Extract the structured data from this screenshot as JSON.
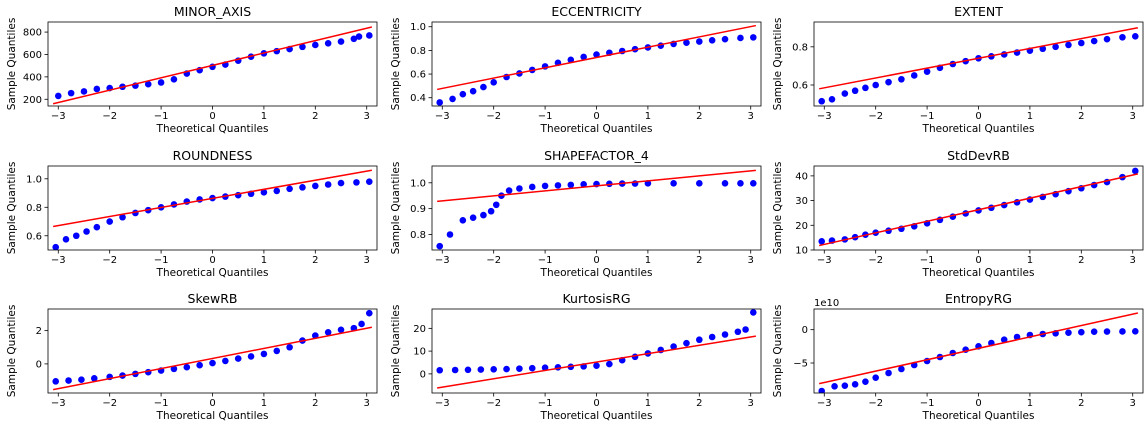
{
  "figure": {
    "xlabel": "Theoretical Quantiles",
    "ylabel": "Sample Quantiles",
    "point_color": "#0000ff",
    "line_color": "#ff0000"
  },
  "chart_data": [
    {
      "type": "scatter",
      "title": "MINOR_AXIS",
      "xlabel": "Theoretical Quantiles",
      "ylabel": "Sample Quantiles",
      "xlim": [
        -3.2,
        3.2
      ],
      "ylim": [
        140,
        890
      ],
      "xticks": [
        -3,
        -2,
        -1,
        0,
        1,
        2,
        3
      ],
      "yticks": [
        200,
        400,
        600,
        800
      ],
      "ytick_labels": [
        "200",
        "400",
        "600",
        "800"
      ],
      "offset_label": "",
      "points": [
        [
          -3.0,
          230
        ],
        [
          -2.75,
          255
        ],
        [
          -2.5,
          270
        ],
        [
          -2.25,
          292
        ],
        [
          -2.0,
          300
        ],
        [
          -1.75,
          312
        ],
        [
          -1.5,
          322
        ],
        [
          -1.25,
          335
        ],
        [
          -1.0,
          350
        ],
        [
          -0.75,
          378
        ],
        [
          -0.5,
          430
        ],
        [
          -0.25,
          460
        ],
        [
          0.0,
          490
        ],
        [
          0.25,
          510
        ],
        [
          0.5,
          545
        ],
        [
          0.75,
          580
        ],
        [
          1.0,
          610
        ],
        [
          1.25,
          630
        ],
        [
          1.5,
          648
        ],
        [
          1.75,
          668
        ],
        [
          2.0,
          685
        ],
        [
          2.25,
          700
        ],
        [
          2.5,
          715
        ],
        [
          2.75,
          740
        ],
        [
          2.85,
          760
        ],
        [
          3.05,
          770
        ]
      ],
      "fit_line": [
        [
          -3.1,
          160
        ],
        [
          3.1,
          845
        ]
      ]
    },
    {
      "type": "scatter",
      "title": "ECCENTRICITY",
      "xlabel": "Theoretical Quantiles",
      "ylabel": "Sample Quantiles",
      "xlim": [
        -3.2,
        3.2
      ],
      "ylim": [
        0.33,
        1.04
      ],
      "xticks": [
        -3,
        -2,
        -1,
        0,
        1,
        2,
        3
      ],
      "yticks": [
        0.4,
        0.6,
        0.8,
        1.0
      ],
      "ytick_labels": [
        "0.4",
        "0.6",
        "0.8",
        "1.0"
      ],
      "offset_label": "",
      "points": [
        [
          -3.05,
          0.36
        ],
        [
          -2.8,
          0.39
        ],
        [
          -2.6,
          0.43
        ],
        [
          -2.4,
          0.455
        ],
        [
          -2.2,
          0.49
        ],
        [
          -2.0,
          0.53
        ],
        [
          -1.75,
          0.575
        ],
        [
          -1.5,
          0.605
        ],
        [
          -1.25,
          0.635
        ],
        [
          -1.0,
          0.665
        ],
        [
          -0.75,
          0.695
        ],
        [
          -0.5,
          0.72
        ],
        [
          -0.25,
          0.745
        ],
        [
          0.0,
          0.765
        ],
        [
          0.25,
          0.78
        ],
        [
          0.5,
          0.795
        ],
        [
          0.75,
          0.81
        ],
        [
          1.0,
          0.825
        ],
        [
          1.25,
          0.84
        ],
        [
          1.5,
          0.855
        ],
        [
          1.75,
          0.865
        ],
        [
          2.0,
          0.875
        ],
        [
          2.25,
          0.885
        ],
        [
          2.5,
          0.895
        ],
        [
          2.8,
          0.905
        ],
        [
          3.05,
          0.91
        ]
      ],
      "fit_line": [
        [
          -3.1,
          0.47
        ],
        [
          3.1,
          1.01
        ]
      ]
    },
    {
      "type": "scatter",
      "title": "EXTENT",
      "xlabel": "Theoretical Quantiles",
      "ylabel": "Sample Quantiles",
      "xlim": [
        -3.2,
        3.2
      ],
      "ylim": [
        0.49,
        0.93
      ],
      "xticks": [
        -3,
        -2,
        -1,
        0,
        1,
        2,
        3
      ],
      "yticks": [
        0.6,
        0.8
      ],
      "ytick_labels": [
        "0.6",
        "0.8"
      ],
      "offset_label": "",
      "points": [
        [
          -3.05,
          0.515
        ],
        [
          -2.85,
          0.525
        ],
        [
          -2.6,
          0.555
        ],
        [
          -2.4,
          0.57
        ],
        [
          -2.2,
          0.585
        ],
        [
          -2.0,
          0.6
        ],
        [
          -1.75,
          0.615
        ],
        [
          -1.5,
          0.63
        ],
        [
          -1.25,
          0.65
        ],
        [
          -1.0,
          0.67
        ],
        [
          -0.75,
          0.69
        ],
        [
          -0.5,
          0.71
        ],
        [
          -0.25,
          0.725
        ],
        [
          0.0,
          0.74
        ],
        [
          0.25,
          0.75
        ],
        [
          0.5,
          0.76
        ],
        [
          0.75,
          0.77
        ],
        [
          1.0,
          0.78
        ],
        [
          1.25,
          0.79
        ],
        [
          1.5,
          0.8
        ],
        [
          1.75,
          0.81
        ],
        [
          2.0,
          0.82
        ],
        [
          2.25,
          0.83
        ],
        [
          2.5,
          0.84
        ],
        [
          2.8,
          0.85
        ],
        [
          3.05,
          0.855
        ]
      ],
      "fit_line": [
        [
          -3.1,
          0.58
        ],
        [
          3.1,
          0.9
        ]
      ]
    },
    {
      "type": "scatter",
      "title": "ROUNDNESS",
      "xlabel": "Theoretical Quantiles",
      "ylabel": "Sample Quantiles",
      "xlim": [
        -3.2,
        3.2
      ],
      "ylim": [
        0.5,
        1.09
      ],
      "xticks": [
        -3,
        -2,
        -1,
        0,
        1,
        2,
        3
      ],
      "yticks": [
        0.6,
        0.8,
        1.0
      ],
      "ytick_labels": [
        "0.6",
        "0.8",
        "1.0"
      ],
      "offset_label": "",
      "points": [
        [
          -3.05,
          0.52
        ],
        [
          -2.85,
          0.575
        ],
        [
          -2.65,
          0.6
        ],
        [
          -2.45,
          0.63
        ],
        [
          -2.25,
          0.66
        ],
        [
          -2.0,
          0.7
        ],
        [
          -1.75,
          0.73
        ],
        [
          -1.5,
          0.76
        ],
        [
          -1.25,
          0.78
        ],
        [
          -1.0,
          0.8
        ],
        [
          -0.75,
          0.82
        ],
        [
          -0.5,
          0.84
        ],
        [
          -0.25,
          0.855
        ],
        [
          0.0,
          0.865
        ],
        [
          0.25,
          0.875
        ],
        [
          0.5,
          0.885
        ],
        [
          0.75,
          0.895
        ],
        [
          1.0,
          0.905
        ],
        [
          1.25,
          0.915
        ],
        [
          1.5,
          0.93
        ],
        [
          1.75,
          0.94
        ],
        [
          2.0,
          0.95
        ],
        [
          2.25,
          0.96
        ],
        [
          2.5,
          0.97
        ],
        [
          2.8,
          0.975
        ],
        [
          3.05,
          0.98
        ]
      ],
      "fit_line": [
        [
          -3.1,
          0.665
        ],
        [
          3.1,
          1.06
        ]
      ]
    },
    {
      "type": "scatter",
      "title": "SHAPEFACTOR_4",
      "xlabel": "Theoretical Quantiles",
      "ylabel": "Sample Quantiles",
      "xlim": [
        -3.2,
        3.2
      ],
      "ylim": [
        0.74,
        1.065
      ],
      "xticks": [
        -3,
        -2,
        -1,
        0,
        1,
        2,
        3
      ],
      "yticks": [
        0.8,
        0.9,
        1.0
      ],
      "ytick_labels": [
        "0.8",
        "0.9",
        "1.0"
      ],
      "offset_label": "",
      "points": [
        [
          -3.05,
          0.755
        ],
        [
          -2.85,
          0.8
        ],
        [
          -2.6,
          0.855
        ],
        [
          -2.4,
          0.865
        ],
        [
          -2.2,
          0.875
        ],
        [
          -2.05,
          0.89
        ],
        [
          -1.95,
          0.915
        ],
        [
          -1.85,
          0.95
        ],
        [
          -1.7,
          0.97
        ],
        [
          -1.5,
          0.978
        ],
        [
          -1.25,
          0.984
        ],
        [
          -1.0,
          0.988
        ],
        [
          -0.75,
          0.99
        ],
        [
          -0.5,
          0.992
        ],
        [
          -0.25,
          0.994
        ],
        [
          0.0,
          0.995
        ],
        [
          0.25,
          0.996
        ],
        [
          0.5,
          0.997
        ],
        [
          0.75,
          0.997
        ],
        [
          1.0,
          0.998
        ],
        [
          1.5,
          0.998
        ],
        [
          2.0,
          0.998
        ],
        [
          2.5,
          0.998
        ],
        [
          2.8,
          0.998
        ],
        [
          3.05,
          0.998
        ]
      ],
      "fit_line": [
        [
          -3.1,
          0.928
        ],
        [
          3.1,
          1.048
        ]
      ]
    },
    {
      "type": "scatter",
      "title": "StdDevRB",
      "xlabel": "Theoretical Quantiles",
      "ylabel": "Sample Quantiles",
      "xlim": [
        -3.2,
        3.2
      ],
      "ylim": [
        10,
        44
      ],
      "xticks": [
        -3,
        -2,
        -1,
        0,
        1,
        2,
        3
      ],
      "yticks": [
        10,
        20,
        30,
        40
      ],
      "ytick_labels": [
        "10",
        "20",
        "30",
        "40"
      ],
      "offset_label": "",
      "points": [
        [
          -3.05,
          13.5
        ],
        [
          -2.85,
          13.8
        ],
        [
          -2.6,
          14.3
        ],
        [
          -2.4,
          15.2
        ],
        [
          -2.2,
          16.2
        ],
        [
          -2.0,
          17.0
        ],
        [
          -1.75,
          17.8
        ],
        [
          -1.5,
          18.6
        ],
        [
          -1.25,
          19.6
        ],
        [
          -1.0,
          20.8
        ],
        [
          -0.75,
          22.2
        ],
        [
          -0.5,
          23.5
        ],
        [
          -0.25,
          24.8
        ],
        [
          0.0,
          26.0
        ],
        [
          0.25,
          27.1
        ],
        [
          0.5,
          28.2
        ],
        [
          0.75,
          29.3
        ],
        [
          1.0,
          30.4
        ],
        [
          1.25,
          31.5
        ],
        [
          1.5,
          32.6
        ],
        [
          1.75,
          33.8
        ],
        [
          2.0,
          35.0
        ],
        [
          2.25,
          36.3
        ],
        [
          2.5,
          37.5
        ],
        [
          2.8,
          39.5
        ],
        [
          3.05,
          42.0
        ]
      ],
      "fit_line": [
        [
          -3.1,
          11.8
        ],
        [
          3.1,
          40.8
        ]
      ]
    },
    {
      "type": "scatter",
      "title": "SkewRB",
      "xlabel": "Theoretical Quantiles",
      "ylabel": "Sample Quantiles",
      "xlim": [
        -3.2,
        3.2
      ],
      "ylim": [
        -1.75,
        3.3
      ],
      "xticks": [
        -3,
        -2,
        -1,
        0,
        1,
        2,
        3
      ],
      "yticks": [
        0,
        2
      ],
      "ytick_labels": [
        "0",
        "2"
      ],
      "offset_label": "",
      "points": [
        [
          -3.05,
          -1.05
        ],
        [
          -2.8,
          -1.0
        ],
        [
          -2.55,
          -0.95
        ],
        [
          -2.3,
          -0.87
        ],
        [
          -2.0,
          -0.78
        ],
        [
          -1.75,
          -0.7
        ],
        [
          -1.5,
          -0.6
        ],
        [
          -1.25,
          -0.5
        ],
        [
          -1.0,
          -0.4
        ],
        [
          -0.75,
          -0.3
        ],
        [
          -0.5,
          -0.2
        ],
        [
          -0.25,
          -0.08
        ],
        [
          0.0,
          0.05
        ],
        [
          0.25,
          0.18
        ],
        [
          0.5,
          0.32
        ],
        [
          0.75,
          0.45
        ],
        [
          1.0,
          0.6
        ],
        [
          1.25,
          0.78
        ],
        [
          1.5,
          1.0
        ],
        [
          1.75,
          1.4
        ],
        [
          2.0,
          1.7
        ],
        [
          2.25,
          1.9
        ],
        [
          2.5,
          2.05
        ],
        [
          2.75,
          2.15
        ],
        [
          2.9,
          2.4
        ],
        [
          3.05,
          3.05
        ]
      ],
      "fit_line": [
        [
          -3.1,
          -1.55
        ],
        [
          3.1,
          2.2
        ]
      ]
    },
    {
      "type": "scatter",
      "title": "KurtosisRG",
      "xlabel": "Theoretical Quantiles",
      "ylabel": "Sample Quantiles",
      "xlim": [
        -3.2,
        3.2
      ],
      "ylim": [
        -8.4,
        28.5
      ],
      "xticks": [
        -3,
        -2,
        -1,
        0,
        1,
        2,
        3
      ],
      "yticks": [
        0,
        10,
        20
      ],
      "ytick_labels": [
        "0",
        "10",
        "20"
      ],
      "offset_label": "",
      "points": [
        [
          -3.05,
          1.6
        ],
        [
          -2.75,
          1.7
        ],
        [
          -2.5,
          1.8
        ],
        [
          -2.25,
          1.9
        ],
        [
          -2.0,
          2.0
        ],
        [
          -1.75,
          2.1
        ],
        [
          -1.5,
          2.3
        ],
        [
          -1.25,
          2.5
        ],
        [
          -1.0,
          2.7
        ],
        [
          -0.75,
          2.9
        ],
        [
          -0.5,
          3.1
        ],
        [
          -0.25,
          3.3
        ],
        [
          0.0,
          3.6
        ],
        [
          0.25,
          4.3
        ],
        [
          0.5,
          6.0
        ],
        [
          0.75,
          7.5
        ],
        [
          1.0,
          9.0
        ],
        [
          1.25,
          10.5
        ],
        [
          1.5,
          12.0
        ],
        [
          1.75,
          13.5
        ],
        [
          2.0,
          15.0
        ],
        [
          2.25,
          16.2
        ],
        [
          2.5,
          17.3
        ],
        [
          2.75,
          18.5
        ],
        [
          2.9,
          19.5
        ],
        [
          3.05,
          27.0
        ]
      ],
      "fit_line": [
        [
          -3.1,
          -6.2
        ],
        [
          3.1,
          16.6
        ]
      ]
    },
    {
      "type": "scatter",
      "title": "EntropyRG",
      "xlabel": "Theoretical Quantiles",
      "ylabel": "Sample Quantiles",
      "xlim": [
        -3.2,
        3.2
      ],
      "ylim": [
        -9.5,
        3.1
      ],
      "xticks": [
        -3,
        -2,
        -1,
        0,
        1,
        2,
        3
      ],
      "yticks": [
        -5,
        0
      ],
      "ytick_labels": [
        "−5",
        "0"
      ],
      "offset_label": "1e10",
      "points": [
        [
          -3.05,
          -9.2
        ],
        [
          -2.8,
          -8.5
        ],
        [
          -2.6,
          -8.4
        ],
        [
          -2.4,
          -8.2
        ],
        [
          -2.2,
          -7.8
        ],
        [
          -2.0,
          -7.2
        ],
        [
          -1.75,
          -6.5
        ],
        [
          -1.5,
          -5.9
        ],
        [
          -1.25,
          -5.3
        ],
        [
          -1.0,
          -4.7
        ],
        [
          -0.75,
          -4.1
        ],
        [
          -0.5,
          -3.5
        ],
        [
          -0.25,
          -3.0
        ],
        [
          0.0,
          -2.5
        ],
        [
          0.25,
          -2.0
        ],
        [
          0.5,
          -1.5
        ],
        [
          0.75,
          -1.1
        ],
        [
          1.0,
          -0.8
        ],
        [
          1.25,
          -0.65
        ],
        [
          1.5,
          -0.55
        ],
        [
          1.75,
          -0.45
        ],
        [
          2.0,
          -0.38
        ],
        [
          2.25,
          -0.3
        ],
        [
          2.5,
          -0.28
        ],
        [
          2.8,
          -0.27
        ],
        [
          3.05,
          -0.25
        ]
      ],
      "fit_line": [
        [
          -3.1,
          -8.1
        ],
        [
          3.1,
          2.5
        ]
      ]
    }
  ]
}
